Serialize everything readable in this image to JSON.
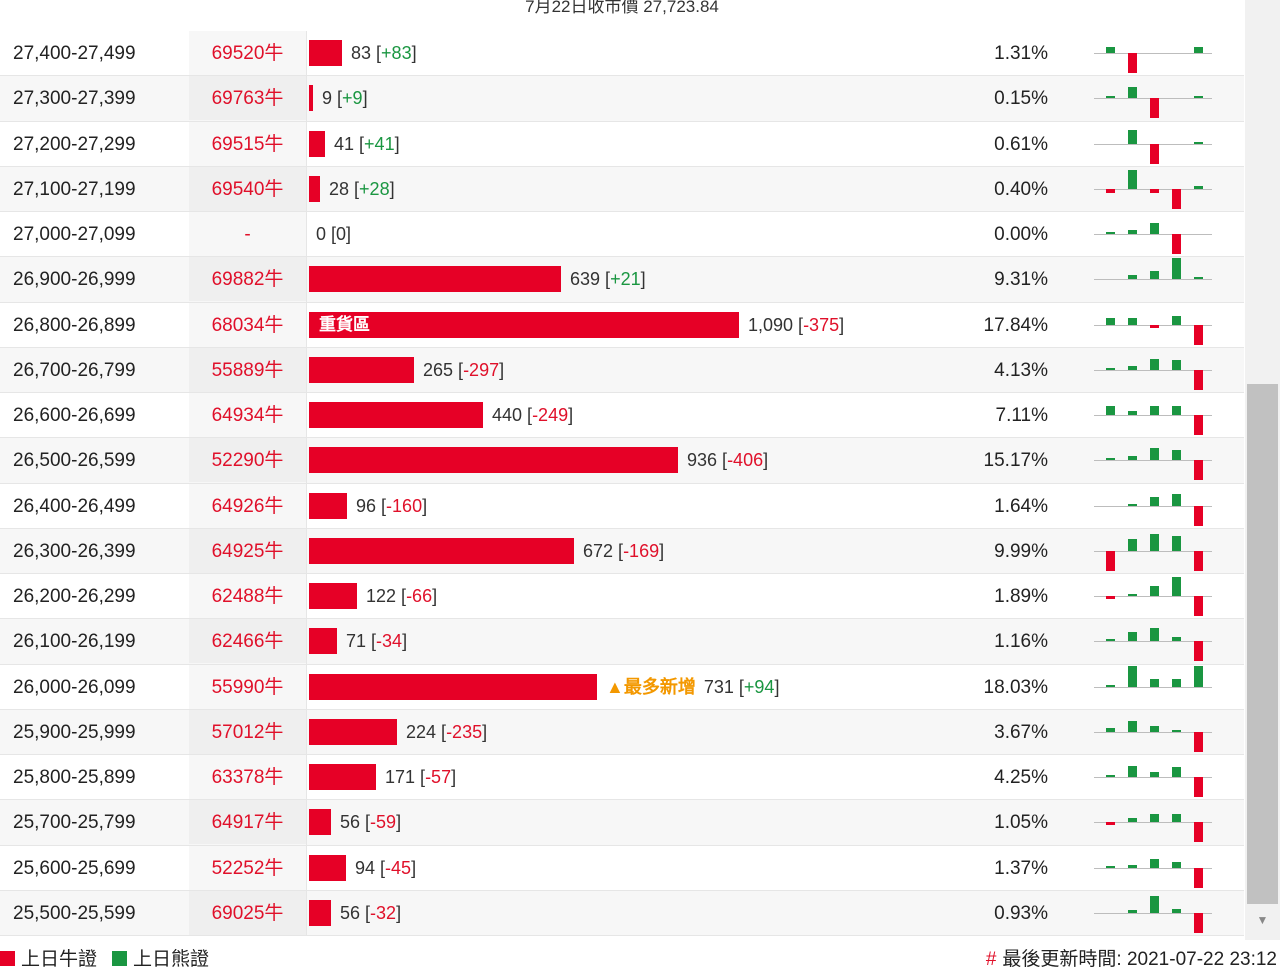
{
  "header": {
    "title": "7月22日收市價 27,723.84"
  },
  "colors": {
    "bull": "#e60026",
    "bear": "#1a9641",
    "highlight": "#f39800"
  },
  "bar_max_value": 1090,
  "rows": [
    {
      "range": "27,400-27,499",
      "code": "69520牛",
      "value": "83",
      "change": "+83",
      "pct": "1.31%",
      "tag": "",
      "badge": "",
      "spark": [
        0.28,
        -0.9,
        0,
        0,
        0.28
      ]
    },
    {
      "range": "27,300-27,399",
      "code": "69763牛",
      "value": "9",
      "change": "+9",
      "pct": "0.15%",
      "tag": "",
      "badge": "",
      "spark": [
        0.06,
        0.5,
        -0.9,
        0,
        0.06
      ]
    },
    {
      "range": "27,200-27,299",
      "code": "69515牛",
      "value": "41",
      "change": "+41",
      "pct": "0.61%",
      "tag": "",
      "badge": "",
      "spark": [
        0,
        0.65,
        -0.9,
        0,
        0.1
      ]
    },
    {
      "range": "27,100-27,199",
      "code": "69540牛",
      "value": "28",
      "change": "+28",
      "pct": "0.40%",
      "tag": "",
      "badge": "",
      "spark": [
        -0.18,
        0.85,
        -0.18,
        -0.9,
        0.12
      ]
    },
    {
      "range": "27,000-27,099",
      "code": "-",
      "value": "0",
      "change": "0",
      "pct": "0.00%",
      "tag": "",
      "badge": "",
      "spark": [
        0.06,
        0.2,
        0.5,
        -0.9,
        0
      ]
    },
    {
      "range": "26,900-26,999",
      "code": "69882牛",
      "value": "639",
      "change": "+21",
      "pct": "9.31%",
      "tag": "",
      "badge": "",
      "spark": [
        0,
        0.18,
        0.35,
        0.95,
        0.06
      ]
    },
    {
      "range": "26,800-26,899",
      "code": "68034牛",
      "value": "1,090",
      "change": "-375",
      "pct": "17.84%",
      "tag": "重貨區",
      "badge": "",
      "spark": [
        0.3,
        0.3,
        -0.12,
        0.42,
        -0.9
      ]
    },
    {
      "range": "26,700-26,799",
      "code": "55889牛",
      "value": "265",
      "change": "-297",
      "pct": "4.13%",
      "tag": "",
      "badge": "",
      "spark": [
        0.08,
        0.16,
        0.5,
        0.46,
        -0.9
      ]
    },
    {
      "range": "26,600-26,699",
      "code": "64934牛",
      "value": "440",
      "change": "-249",
      "pct": "7.11%",
      "tag": "",
      "badge": "",
      "spark": [
        0.42,
        0.16,
        0.4,
        0.42,
        -0.9
      ]
    },
    {
      "range": "26,500-26,599",
      "code": "52290牛",
      "value": "936",
      "change": "-406",
      "pct": "15.17%",
      "tag": "",
      "badge": "",
      "spark": [
        0.06,
        0.2,
        0.55,
        0.46,
        -0.9
      ]
    },
    {
      "range": "26,400-26,499",
      "code": "64926牛",
      "value": "96",
      "change": "-160",
      "pct": "1.64%",
      "tag": "",
      "badge": "",
      "spark": [
        0,
        0.06,
        0.4,
        0.55,
        -0.9
      ]
    },
    {
      "range": "26,300-26,399",
      "code": "64925牛",
      "value": "672",
      "change": "-169",
      "pct": "9.99%",
      "tag": "",
      "badge": "",
      "spark": [
        -0.9,
        0.55,
        0.75,
        0.7,
        -0.9
      ]
    },
    {
      "range": "26,200-26,299",
      "code": "62488牛",
      "value": "122",
      "change": "-66",
      "pct": "1.89%",
      "tag": "",
      "badge": "",
      "spark": [
        -0.14,
        0.1,
        0.45,
        0.85,
        -0.9
      ]
    },
    {
      "range": "26,100-26,199",
      "code": "62466牛",
      "value": "71",
      "change": "-34",
      "pct": "1.16%",
      "tag": "",
      "badge": "",
      "spark": [
        0.06,
        0.42,
        0.6,
        0.2,
        -0.9
      ]
    },
    {
      "range": "26,000-26,099",
      "code": "55990牛",
      "value": "731",
      "change": "+94",
      "pct": "18.03%",
      "tag": "",
      "badge": "▲最多新增",
      "spark": [
        0.06,
        0.95,
        0.35,
        0.35,
        0.95
      ]
    },
    {
      "range": "25,900-25,999",
      "code": "57012牛",
      "value": "224",
      "change": "-235",
      "pct": "3.67%",
      "tag": "",
      "badge": "",
      "spark": [
        0.2,
        0.5,
        0.28,
        0.06,
        -0.9
      ]
    },
    {
      "range": "25,800-25,899",
      "code": "63378牛",
      "value": "171",
      "change": "-57",
      "pct": "4.25%",
      "tag": "",
      "badge": "",
      "spark": [
        0.06,
        0.48,
        0.22,
        0.46,
        -0.9
      ]
    },
    {
      "range": "25,700-25,799",
      "code": "64917牛",
      "value": "56",
      "change": "-59",
      "pct": "1.05%",
      "tag": "",
      "badge": "",
      "spark": [
        -0.12,
        0.2,
        0.38,
        0.38,
        -0.9
      ]
    },
    {
      "range": "25,600-25,699",
      "code": "52252牛",
      "value": "94",
      "change": "-45",
      "pct": "1.37%",
      "tag": "",
      "badge": "",
      "spark": [
        0.06,
        0.14,
        0.42,
        0.26,
        -0.9
      ]
    },
    {
      "range": "25,500-25,599",
      "code": "69025牛",
      "value": "56",
      "change": "-32",
      "pct": "0.93%",
      "tag": "",
      "badge": "",
      "spark": [
        0,
        0.14,
        0.75,
        0.2,
        -0.9
      ]
    }
  ],
  "legend": {
    "bull_label": "上日牛證",
    "bear_label": "上日熊證"
  },
  "updated": {
    "hash": "#",
    "text": "最後更新時間: 2021-07-22 23:12"
  }
}
